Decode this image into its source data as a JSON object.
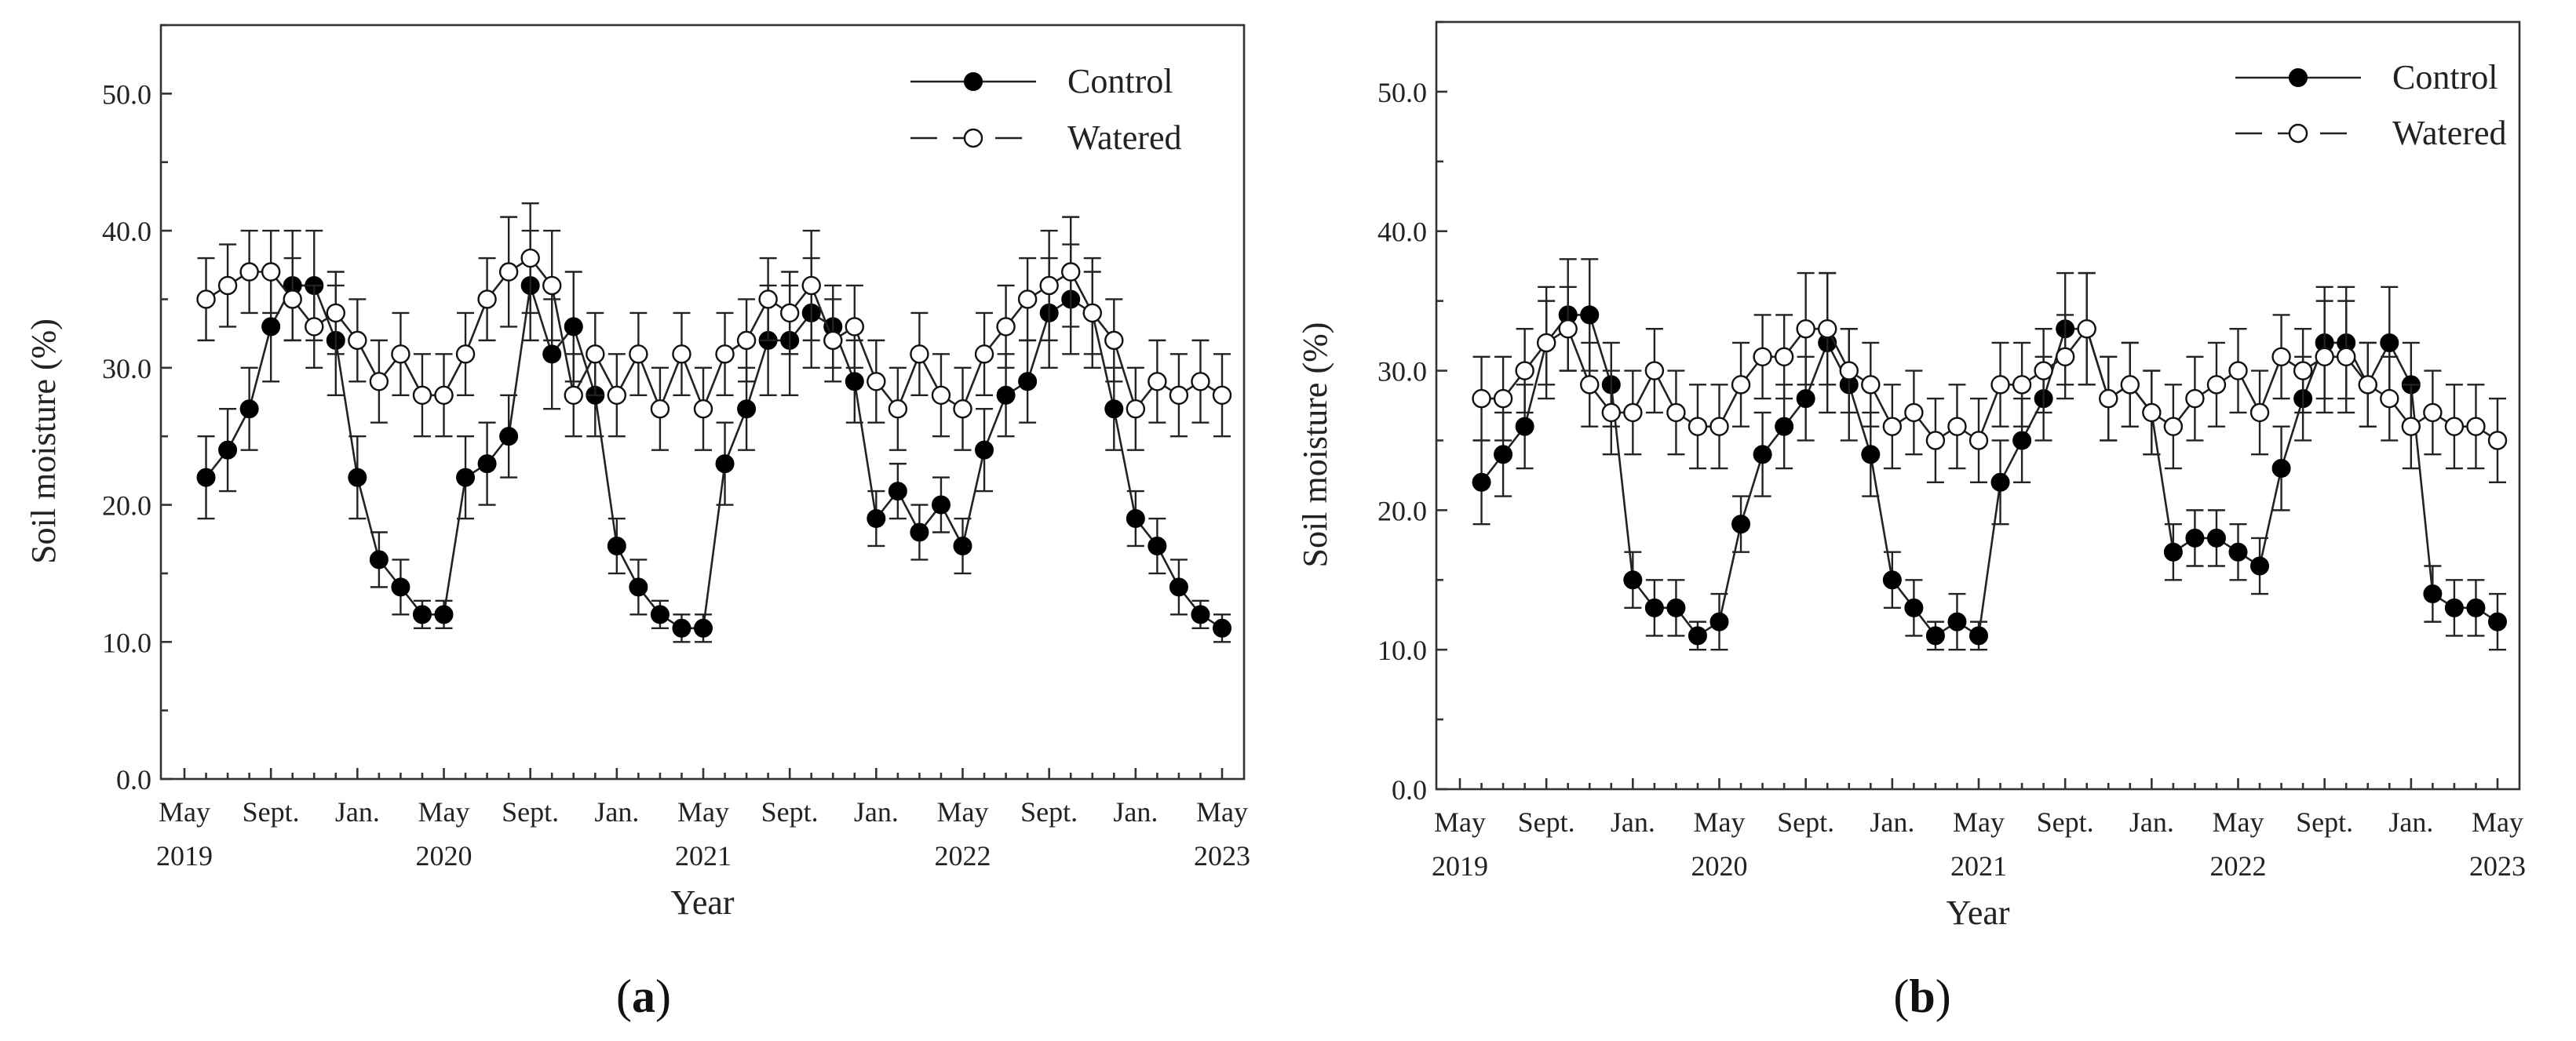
{
  "chart_data": [
    {
      "type": "line",
      "panel_label": [
        "(",
        "a",
        ")"
      ],
      "xlabel": "Year",
      "ylabel": "Soil moisture (%)",
      "ylim": [
        0,
        55
      ],
      "yticks": [
        "0.0",
        "10.0",
        "20.0",
        "30.0",
        "40.0",
        "50.0"
      ],
      "xlim": [
        0,
        48
      ],
      "xticks": [
        {
          "pos": 0,
          "line1": "May",
          "line2": "2019"
        },
        {
          "pos": 4,
          "line1": "Sept.",
          "line2": ""
        },
        {
          "pos": 8,
          "line1": "Jan.",
          "line2": ""
        },
        {
          "pos": 12,
          "line1": "May",
          "line2": "2020"
        },
        {
          "pos": 16,
          "line1": "Sept.",
          "line2": ""
        },
        {
          "pos": 20,
          "line1": "Jan.",
          "line2": ""
        },
        {
          "pos": 24,
          "line1": "May",
          "line2": "2021"
        },
        {
          "pos": 28,
          "line1": "Sept.",
          "line2": ""
        },
        {
          "pos": 32,
          "line1": "Jan.",
          "line2": ""
        },
        {
          "pos": 36,
          "line1": "May",
          "line2": "2022"
        },
        {
          "pos": 40,
          "line1": "Sept.",
          "line2": ""
        },
        {
          "pos": 44,
          "line1": "Jan.",
          "line2": ""
        },
        {
          "pos": 48,
          "line1": "May",
          "line2": "2023"
        }
      ],
      "legend": {
        "position": "top-right",
        "entries": [
          "Control",
          "Watered"
        ]
      },
      "series": [
        {
          "name": "Control",
          "marker": "filled-circle",
          "x": [
            1,
            2,
            3,
            4,
            5,
            6,
            7,
            8,
            9,
            10,
            11,
            12,
            13,
            14,
            15,
            16,
            17,
            18,
            19,
            20,
            21,
            22,
            23,
            24,
            25,
            26,
            27,
            28,
            29,
            30,
            31,
            32,
            33,
            34,
            35,
            36,
            37,
            38,
            39,
            40,
            41,
            42,
            43,
            44,
            45,
            46,
            47,
            48
          ],
          "y": [
            22,
            24,
            27,
            33,
            36,
            36,
            32,
            22,
            16,
            14,
            12,
            12,
            22,
            23,
            25,
            36,
            31,
            33,
            28,
            17,
            14,
            12,
            11,
            11,
            23,
            27,
            32,
            32,
            34,
            33,
            29,
            19,
            21,
            18,
            20,
            17,
            24,
            28,
            29,
            34,
            35,
            34,
            27,
            19,
            17,
            14,
            12,
            11
          ],
          "err": [
            3,
            3,
            3,
            4,
            4,
            4,
            4,
            3,
            2,
            2,
            1,
            1,
            3,
            3,
            3,
            4,
            4,
            4,
            3,
            2,
            2,
            1,
            1,
            1,
            3,
            3,
            4,
            4,
            4,
            3,
            3,
            2,
            2,
            2,
            2,
            2,
            3,
            3,
            3,
            4,
            4,
            4,
            3,
            2,
            2,
            2,
            1,
            1
          ]
        },
        {
          "name": "Watered",
          "marker": "open-circle",
          "x": [
            1,
            2,
            3,
            4,
            5,
            6,
            7,
            8,
            9,
            10,
            11,
            12,
            13,
            14,
            15,
            16,
            17,
            18,
            19,
            20,
            21,
            22,
            23,
            24,
            25,
            26,
            27,
            28,
            29,
            30,
            31,
            32,
            33,
            34,
            35,
            36,
            37,
            38,
            39,
            40,
            41,
            42,
            43,
            44,
            45,
            46,
            47,
            48
          ],
          "y": [
            35,
            36,
            37,
            37,
            35,
            33,
            34,
            32,
            29,
            31,
            28,
            28,
            31,
            35,
            37,
            38,
            36,
            28,
            31,
            28,
            31,
            27,
            31,
            27,
            31,
            32,
            35,
            34,
            36,
            32,
            33,
            29,
            27,
            31,
            28,
            27,
            31,
            33,
            35,
            36,
            37,
            34,
            32,
            27,
            29,
            28,
            29,
            28
          ],
          "err": [
            3,
            3,
            3,
            3,
            3,
            3,
            3,
            3,
            3,
            3,
            3,
            3,
            3,
            3,
            4,
            4,
            4,
            3,
            3,
            3,
            3,
            3,
            3,
            3,
            3,
            3,
            3,
            3,
            4,
            3,
            3,
            3,
            3,
            3,
            3,
            3,
            3,
            3,
            3,
            4,
            4,
            3,
            3,
            3,
            3,
            3,
            3,
            3
          ]
        }
      ]
    },
    {
      "type": "line",
      "panel_label": [
        "(",
        "b",
        ")"
      ],
      "xlabel": "Year",
      "ylabel": "Soil moisture (%)",
      "ylim": [
        0,
        55
      ],
      "yticks": [
        "0.0",
        "10.0",
        "20.0",
        "30.0",
        "40.0",
        "50.0"
      ],
      "xlim": [
        0,
        48
      ],
      "xticks": [
        {
          "pos": 0,
          "line1": "May",
          "line2": "2019"
        },
        {
          "pos": 4,
          "line1": "Sept.",
          "line2": ""
        },
        {
          "pos": 8,
          "line1": "Jan.",
          "line2": ""
        },
        {
          "pos": 12,
          "line1": "May",
          "line2": "2020"
        },
        {
          "pos": 16,
          "line1": "Sept.",
          "line2": ""
        },
        {
          "pos": 20,
          "line1": "Jan.",
          "line2": ""
        },
        {
          "pos": 24,
          "line1": "May",
          "line2": "2021"
        },
        {
          "pos": 28,
          "line1": "Sept.",
          "line2": ""
        },
        {
          "pos": 32,
          "line1": "Jan.",
          "line2": ""
        },
        {
          "pos": 36,
          "line1": "May",
          "line2": "2022"
        },
        {
          "pos": 40,
          "line1": "Sept.",
          "line2": ""
        },
        {
          "pos": 44,
          "line1": "Jan.",
          "line2": ""
        },
        {
          "pos": 48,
          "line1": "May",
          "line2": "2023"
        }
      ],
      "legend": {
        "position": "top-right",
        "entries": [
          "Control",
          "Watered"
        ]
      },
      "series": [
        {
          "name": "Control",
          "marker": "filled-circle",
          "x": [
            1,
            2,
            3,
            4,
            5,
            6,
            7,
            8,
            9,
            10,
            11,
            12,
            13,
            14,
            15,
            16,
            17,
            18,
            19,
            20,
            21,
            22,
            23,
            24,
            25,
            26,
            27,
            28,
            29,
            30,
            31,
            32,
            33,
            34,
            35,
            36,
            37,
            38,
            39,
            40,
            41,
            42,
            43,
            44,
            45,
            46,
            47,
            48
          ],
          "y": [
            22,
            24,
            26,
            32,
            34,
            34,
            29,
            15,
            13,
            13,
            11,
            12,
            19,
            24,
            26,
            28,
            32,
            29,
            24,
            15,
            13,
            11,
            12,
            11,
            22,
            25,
            28,
            33,
            33,
            28,
            29,
            27,
            17,
            18,
            18,
            17,
            16,
            23,
            28,
            32,
            32,
            29,
            32,
            29,
            14,
            13,
            13,
            12
          ],
          "err": [
            3,
            3,
            3,
            4,
            4,
            4,
            3,
            2,
            2,
            2,
            1,
            2,
            2,
            3,
            3,
            3,
            5,
            4,
            3,
            2,
            2,
            1,
            2,
            1,
            3,
            3,
            3,
            4,
            4,
            3,
            3,
            3,
            2,
            2,
            2,
            2,
            2,
            3,
            3,
            4,
            4,
            3,
            4,
            3,
            2,
            2,
            2,
            2
          ]
        },
        {
          "name": "Watered",
          "marker": "open-circle",
          "x": [
            1,
            2,
            3,
            4,
            5,
            6,
            7,
            8,
            9,
            10,
            11,
            12,
            13,
            14,
            15,
            16,
            17,
            18,
            19,
            20,
            21,
            22,
            23,
            24,
            25,
            26,
            27,
            28,
            29,
            30,
            31,
            32,
            33,
            34,
            35,
            36,
            37,
            38,
            39,
            40,
            41,
            42,
            43,
            44,
            45,
            46,
            47,
            48
          ],
          "y": [
            28,
            28,
            30,
            32,
            33,
            29,
            27,
            27,
            30,
            27,
            26,
            26,
            29,
            31,
            31,
            33,
            33,
            30,
            29,
            26,
            27,
            25,
            26,
            25,
            29,
            29,
            30,
            31,
            33,
            28,
            29,
            27,
            26,
            28,
            29,
            30,
            27,
            31,
            30,
            31,
            31,
            29,
            28,
            26,
            27,
            26,
            26,
            25
          ],
          "err": [
            3,
            3,
            3,
            3,
            3,
            3,
            3,
            3,
            3,
            3,
            3,
            3,
            3,
            3,
            3,
            4,
            4,
            3,
            3,
            3,
            3,
            3,
            3,
            3,
            3,
            3,
            3,
            3,
            4,
            3,
            3,
            3,
            3,
            3,
            3,
            3,
            3,
            3,
            3,
            4,
            4,
            3,
            3,
            3,
            3,
            3,
            3,
            3
          ]
        }
      ]
    }
  ]
}
